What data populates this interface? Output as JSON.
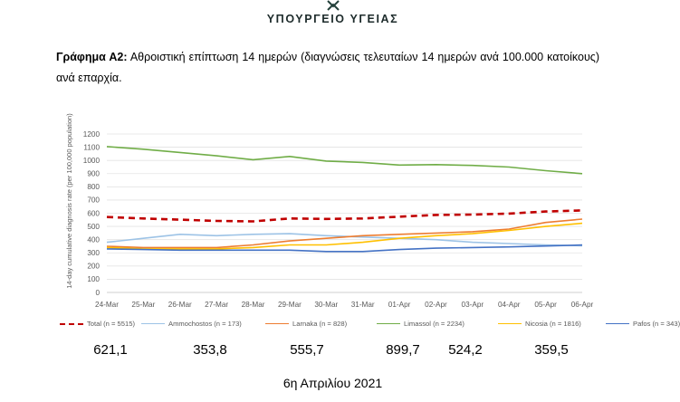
{
  "header": {
    "ministry": "ΥΠΟΥΡΓΕΙΟ ΥΓΕΙΑΣ"
  },
  "caption": {
    "label": "Γράφημα Α2:",
    "text": "Αθροιστική επίπτωση 14 ημερών (διαγνώσεις τελευταίων 14 ημερών ανά 100.000 κατοίκους) ανά επαρχία."
  },
  "chart_data": {
    "type": "line",
    "ylabel": "14-day cumulative diagnosis rate (per 100,000 population)",
    "xlabel": "",
    "ylim": [
      0,
      1200
    ],
    "yticks": [
      0,
      100,
      200,
      300,
      400,
      500,
      600,
      700,
      800,
      900,
      1000,
      1100,
      1200
    ],
    "categories": [
      "24-Mar",
      "25-Mar",
      "26-Mar",
      "27-Mar",
      "28-Mar",
      "29-Mar",
      "30-Mar",
      "31-Mar",
      "01-Apr",
      "02-Apr",
      "03-Apr",
      "04-Apr",
      "05-Apr",
      "06-Apr"
    ],
    "grid": "horizontal",
    "legend_position": "bottom",
    "series": [
      {
        "name": "Total (n = 5515)",
        "color": "#c00000",
        "dash": true,
        "values": [
          571,
          560,
          551,
          542,
          538,
          560,
          557,
          560,
          574,
          587,
          590,
          597,
          613,
          621.1
        ]
      },
      {
        "name": "Ammochostos (n = 173)",
        "color": "#9dc3e6",
        "dash": false,
        "values": [
          380,
          410,
          440,
          430,
          440,
          445,
          430,
          420,
          410,
          400,
          380,
          370,
          360,
          353.8
        ]
      },
      {
        "name": "Larnaka (n = 828)",
        "color": "#ed7d31",
        "dash": false,
        "values": [
          350,
          340,
          340,
          340,
          360,
          390,
          410,
          430,
          440,
          450,
          460,
          480,
          530,
          555.7
        ]
      },
      {
        "name": "Limassol (n = 2234)",
        "color": "#70ad47",
        "dash": false,
        "values": [
          1105,
          1085,
          1060,
          1035,
          1005,
          1030,
          995,
          985,
          965,
          968,
          962,
          950,
          922,
          899.7
        ]
      },
      {
        "name": "Nicosia (n = 1816)",
        "color": "#ffc000",
        "dash": false,
        "values": [
          340,
          330,
          330,
          330,
          340,
          360,
          360,
          380,
          410,
          430,
          445,
          470,
          500,
          524.2
        ]
      },
      {
        "name": "Pafos (n = 343)",
        "color": "#4472c4",
        "dash": false,
        "values": [
          330,
          325,
          320,
          320,
          320,
          320,
          310,
          310,
          325,
          335,
          340,
          345,
          352,
          359.5
        ]
      }
    ]
  },
  "final_values": [
    "621,1",
    "353,8",
    "555,7",
    "899,7",
    "524,2",
    "359,5"
  ],
  "footer": {
    "date": "6η Απριλίου 2021"
  }
}
